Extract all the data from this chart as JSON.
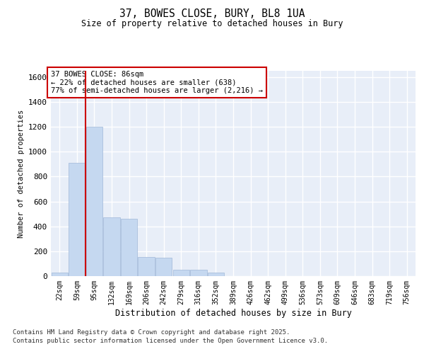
{
  "title1": "37, BOWES CLOSE, BURY, BL8 1UA",
  "title2": "Size of property relative to detached houses in Bury",
  "xlabel": "Distribution of detached houses by size in Bury",
  "ylabel": "Number of detached properties",
  "categories": [
    "22sqm",
    "59sqm",
    "95sqm",
    "132sqm",
    "169sqm",
    "206sqm",
    "242sqm",
    "279sqm",
    "316sqm",
    "352sqm",
    "389sqm",
    "426sqm",
    "462sqm",
    "499sqm",
    "536sqm",
    "573sqm",
    "609sqm",
    "646sqm",
    "683sqm",
    "719sqm",
    "756sqm"
  ],
  "values": [
    30,
    910,
    1200,
    470,
    460,
    155,
    150,
    50,
    50,
    30,
    0,
    0,
    0,
    0,
    0,
    0,
    0,
    0,
    0,
    0,
    0
  ],
  "bar_color": "#c5d8f0",
  "bar_edge_color": "#a0b8d8",
  "vline_color": "#cc0000",
  "annotation_text": "37 BOWES CLOSE: 86sqm\n← 22% of detached houses are smaller (638)\n77% of semi-detached houses are larger (2,216) →",
  "annotation_box_color": "#ffffff",
  "annotation_box_edge": "#cc0000",
  "ylim": [
    0,
    1650
  ],
  "yticks": [
    0,
    200,
    400,
    600,
    800,
    1000,
    1200,
    1400,
    1600
  ],
  "background_color": "#e8eef8",
  "grid_color": "#ffffff",
  "fig_background": "#ffffff",
  "footer1": "Contains HM Land Registry data © Crown copyright and database right 2025.",
  "footer2": "Contains public sector information licensed under the Open Government Licence v3.0."
}
